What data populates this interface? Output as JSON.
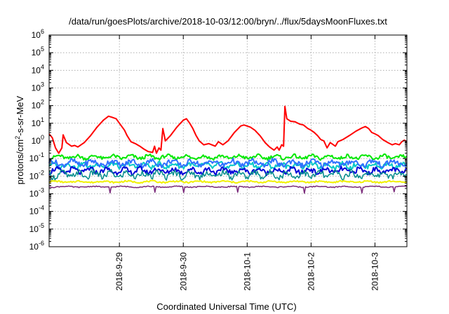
{
  "chart_data": {
    "type": "line",
    "title": "/data/run/goesPlots/archive/2018-10-03/12:00/bryn/../flux/5daysMoonFluxes.txt",
    "xlabel": "Coordinated Universal Time (UTC)",
    "ylabel": {
      "base": "protons/cm",
      "sup": "2",
      "rest": "-s-sr-MeV"
    },
    "yscale": "log",
    "ylim_exponent": [
      -6,
      6
    ],
    "y_ticks": [
      {
        "base": "10",
        "exp": "-6",
        "exp_value": -6
      },
      {
        "base": "10",
        "exp": "-5",
        "exp_value": -5
      },
      {
        "base": "10",
        "exp": "-4",
        "exp_value": -4
      },
      {
        "base": "10",
        "exp": "-3",
        "exp_value": -3
      },
      {
        "base": "10",
        "exp": "-2",
        "exp_value": -2
      },
      {
        "base": "10",
        "exp": "-1",
        "exp_value": -1
      },
      {
        "base": "10",
        "exp": "0",
        "exp_value": 0
      },
      {
        "base": "10",
        "exp": "1",
        "exp_value": 1
      },
      {
        "base": "10",
        "exp": "2",
        "exp_value": 2
      },
      {
        "base": "10",
        "exp": "3",
        "exp_value": 3
      },
      {
        "base": "10",
        "exp": "4",
        "exp_value": 4
      },
      {
        "base": "10",
        "exp": "5",
        "exp_value": 5
      },
      {
        "base": "10",
        "exp": "6",
        "exp_value": 6
      }
    ],
    "xlim_days": [
      27.9,
      33.5
    ],
    "x_ticks": [
      {
        "label": "2018-9-29",
        "day": 29
      },
      {
        "label": "2018-9-30",
        "day": 30
      },
      {
        "label": "2018-10-1",
        "day": 31
      },
      {
        "label": "2018-10-2",
        "day": 32
      },
      {
        "label": "2018-10-3",
        "day": 33
      }
    ],
    "grid": true,
    "series": [
      {
        "color": "#ff0000",
        "width": 2,
        "points": [
          [
            27.9,
            2.5
          ],
          [
            27.95,
            1.5
          ],
          [
            28.0,
            0.4
          ],
          [
            28.05,
            0.2
          ],
          [
            28.1,
            0.4
          ],
          [
            28.12,
            2.2
          ],
          [
            28.17,
            0.8
          ],
          [
            28.25,
            0.5
          ],
          [
            28.3,
            0.55
          ],
          [
            28.35,
            0.45
          ],
          [
            28.45,
            0.8
          ],
          [
            28.55,
            2
          ],
          [
            28.65,
            6
          ],
          [
            28.75,
            15
          ],
          [
            28.83,
            25
          ],
          [
            28.88,
            22
          ],
          [
            28.95,
            18
          ],
          [
            29.0,
            10
          ],
          [
            29.08,
            4
          ],
          [
            29.12,
            2
          ],
          [
            29.18,
            0.9
          ],
          [
            29.25,
            0.7
          ],
          [
            29.32,
            0.5
          ],
          [
            29.38,
            0.35
          ],
          [
            29.45,
            0.25
          ],
          [
            29.52,
            0.22
          ],
          [
            29.55,
            0.5
          ],
          [
            29.58,
            0.2
          ],
          [
            29.62,
            0.4
          ],
          [
            29.65,
            0.3
          ],
          [
            29.68,
            5
          ],
          [
            29.72,
            1
          ],
          [
            29.8,
            2
          ],
          [
            29.9,
            6
          ],
          [
            30.0,
            15
          ],
          [
            30.05,
            18
          ],
          [
            30.1,
            10
          ],
          [
            30.15,
            5
          ],
          [
            30.2,
            2
          ],
          [
            30.25,
            1
          ],
          [
            30.32,
            0.6
          ],
          [
            30.4,
            0.7
          ],
          [
            30.5,
            0.5
          ],
          [
            30.55,
            0.9
          ],
          [
            30.62,
            0.6
          ],
          [
            30.7,
            1
          ],
          [
            30.8,
            3
          ],
          [
            30.9,
            7
          ],
          [
            30.95,
            8
          ],
          [
            31.05,
            6
          ],
          [
            31.12,
            4
          ],
          [
            31.2,
            2
          ],
          [
            31.28,
            0.8
          ],
          [
            31.35,
            0.45
          ],
          [
            31.42,
            0.3
          ],
          [
            31.47,
            0.45
          ],
          [
            31.5,
            0.3
          ],
          [
            31.54,
            0.6
          ],
          [
            31.57,
            0.5
          ],
          [
            31.59,
            90
          ],
          [
            31.62,
            18
          ],
          [
            31.68,
            13
          ],
          [
            31.75,
            12
          ],
          [
            31.82,
            9
          ],
          [
            31.88,
            8
          ],
          [
            31.95,
            5
          ],
          [
            32.0,
            4
          ],
          [
            32.05,
            3
          ],
          [
            32.1,
            2
          ],
          [
            32.15,
            1.2
          ],
          [
            32.2,
            1
          ],
          [
            32.25,
            0.4
          ],
          [
            32.3,
            0.8
          ],
          [
            32.38,
            0.5
          ],
          [
            32.42,
            0.9
          ],
          [
            32.5,
            1.2
          ],
          [
            32.6,
            2
          ],
          [
            32.7,
            3.5
          ],
          [
            32.8,
            5.5
          ],
          [
            32.85,
            6.5
          ],
          [
            32.9,
            5
          ],
          [
            32.95,
            3
          ],
          [
            33.0,
            2.5
          ],
          [
            33.05,
            2
          ],
          [
            33.12,
            1.2
          ],
          [
            33.2,
            0.8
          ],
          [
            33.27,
            0.6
          ],
          [
            33.32,
            0.7
          ],
          [
            33.38,
            0.6
          ],
          [
            33.42,
            0.9
          ],
          [
            33.46,
            1.1
          ],
          [
            33.5,
            0.9
          ]
        ]
      },
      {
        "color": "#00e800",
        "width": 2,
        "base": 0.12,
        "amp": 0.14,
        "period": 0.045,
        "phase": 0.3,
        "tail": 0.09
      },
      {
        "color": "#00c8c8",
        "width": 2,
        "base": 0.04,
        "amp": 0.18,
        "period": 0.038,
        "phase": 1.1,
        "tail": 0.04
      },
      {
        "color": "#3070ff",
        "width": 2,
        "base": 0.055,
        "amp": 0.22,
        "period": 0.05,
        "phase": 2.0,
        "tail": 0.045
      },
      {
        "color": "#0000d8",
        "width": 2,
        "base": 0.02,
        "amp": 0.2,
        "period": 0.042,
        "phase": 0.7,
        "tail": 0.018
      },
      {
        "color": "#008c8c",
        "width": 1.5,
        "base": 0.012,
        "amp": 0.25,
        "period": 0.04,
        "phase": 2.6,
        "tail": 0.012
      },
      {
        "color": "#f0f000",
        "width": 2,
        "base": 0.0048,
        "amp": 0.06,
        "period": 0.06,
        "phase": 0.0,
        "tail": 0.0048
      },
      {
        "color": "#7a2a7a",
        "width": 1.5,
        "base": 0.0025,
        "amp": 0.04,
        "period": 0.07,
        "phase": 1.5,
        "tail": 0.0025,
        "dips": [
          28.85,
          29.55,
          30.0,
          30.85,
          31.9,
          32.8,
          33.3
        ]
      }
    ]
  }
}
